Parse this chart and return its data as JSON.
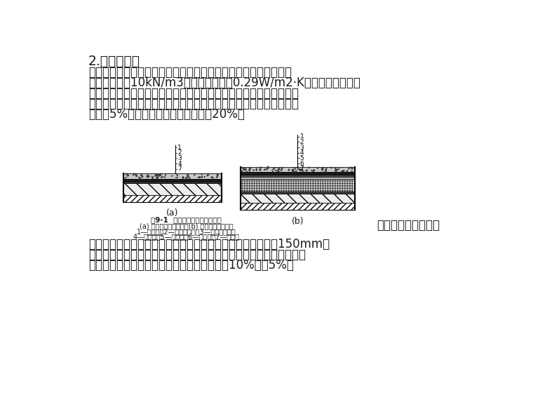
{
  "title": "2.保温层施工",
  "para1_lines": [
    "保温层采用的材料，可分为松散保温材料或整体保温材料，保温材",
    "料容重应小于10kN/m3，导热系数小于0.29W/m2·K；应具有较好的防",
    "腐性能或经过防腐处理；保温材料的含水率应符合设计要求，无设计",
    "要求时，相当于该材料在自然风干状态下含水率；憎水性胶结材料不",
    "得超过5%，水硬性胶结材料不得超过20%。"
  ],
  "fig_caption_main": "图9-1  卷材防水屋面构造示意图",
  "fig_caption_sub1": "(a) 无保温层地毯层屋；(b) 有保温层地毯层屋",
  "fig_caption_sub2": "1—保护层；2—卷材防水层；3—基面结合层；",
  "fig_caption_sub3": "4—找平层；5—保温层；6—隔气层；7—结构层",
  "fig_label_right": "卷材屋面防水构造图",
  "label_a": "(a)",
  "label_b": "(b)",
  "para2_lines": [
    "松散保温材料应分层铺设，适当压实，每层虚铺厚度不宜大于150mm，",
    "压实程度与厚度应事先根据设计要求试验确定，保温层压实后不得在上",
    "面行车或堆放重物。保温层厚度允许偏差为＋10%或－5%。"
  ],
  "bg_color": "#ffffff",
  "text_color": "#1a1a1a",
  "font_size_title": 13.5,
  "font_size_body": 12.0,
  "font_size_caption_main": 7.5,
  "font_size_caption_sub": 7.0,
  "font_size_fig_label": 12.0,
  "font_size_diagram_num": 6.5
}
